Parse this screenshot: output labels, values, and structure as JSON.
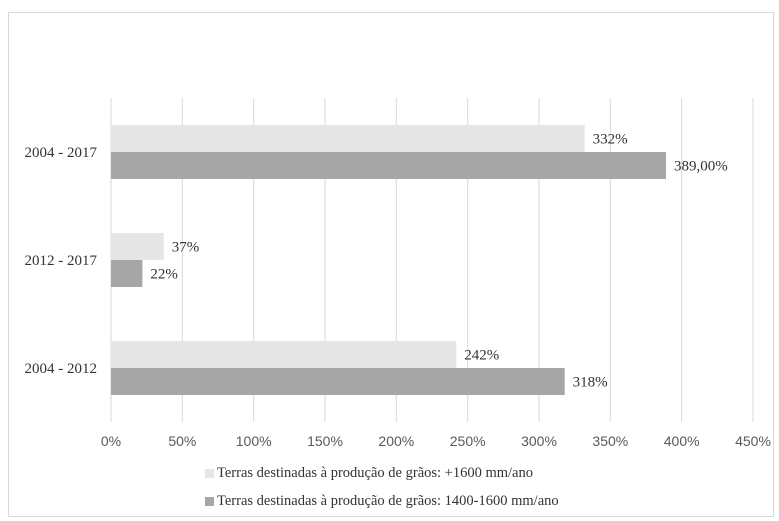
{
  "chart_data": {
    "type": "bar",
    "orientation": "horizontal",
    "categories": [
      "2004 - 2017",
      "2012 - 2017",
      "2004 - 2012"
    ],
    "series": [
      {
        "name": "Terras destinadas à produção de grãos: +1600 mm/ano",
        "values": [
          332,
          37,
          242
        ],
        "labels": [
          "332%",
          "37%",
          "242%"
        ],
        "color": "#e6e6e6"
      },
      {
        "name": "Terras destinadas à produção de grãos: 1400-1600 mm/ano",
        "values": [
          389,
          22,
          318
        ],
        "labels": [
          "389,00%",
          "22%",
          "318%"
        ],
        "color": "#a6a6a6"
      }
    ],
    "x_ticks": [
      "0%",
      "50%",
      "100%",
      "150%",
      "200%",
      "250%",
      "300%",
      "350%",
      "400%",
      "450%"
    ],
    "xlim": [
      0,
      450
    ],
    "grid": true,
    "legend_position": "bottom",
    "title": "",
    "xlabel": "",
    "ylabel": ""
  }
}
